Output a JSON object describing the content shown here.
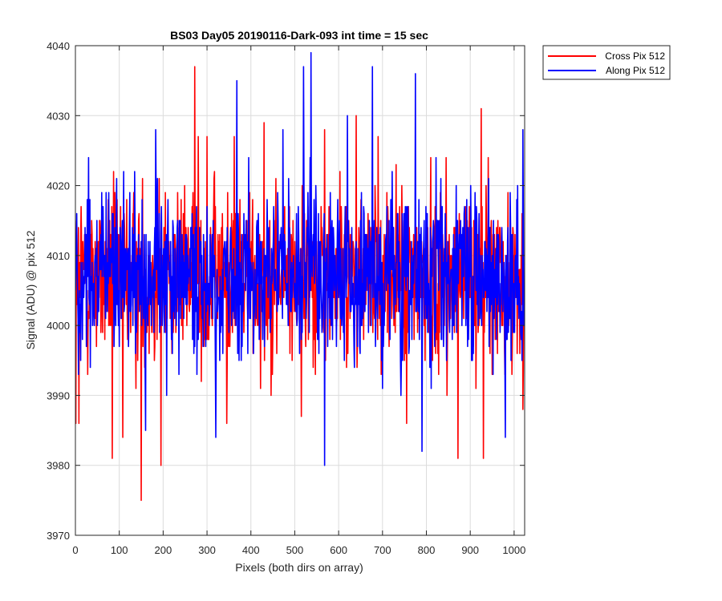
{
  "chart_data": {
    "type": "line",
    "title": "BS03 Day05 20190116-Dark-093 int time = 15 sec",
    "xlabel": "Pixels (both dirs on array)",
    "ylabel": "Signal (ADU) @ pix 512",
    "xlim": [
      0,
      1024
    ],
    "ylim": [
      3970,
      4040
    ],
    "xticks": [
      0,
      100,
      200,
      300,
      400,
      500,
      600,
      700,
      800,
      900,
      1000
    ],
    "yticks": [
      3970,
      3980,
      3990,
      4000,
      4010,
      4020,
      4030,
      4040
    ],
    "grid": true,
    "legend_position": "outside-top-right",
    "series": [
      {
        "name": "Cross Pix 512",
        "color": "#ff0000",
        "n_points": 1024,
        "mean": 4007,
        "noise_std": 6,
        "x": [
          1,
          8,
          84,
          108,
          150,
          195,
          272,
          280,
          300,
          345,
          362,
          430,
          457,
          515,
          568,
          640,
          690,
          755,
          845,
          872,
          925,
          930,
          1020
        ],
        "y": [
          3986,
          3986,
          3981,
          3984,
          3975,
          3980,
          4037,
          4027,
          4027,
          3986,
          4027,
          4029,
          4021,
          3987,
          4028,
          4030,
          4027,
          3986,
          4024,
          3981,
          4031,
          3981,
          3988
        ]
      },
      {
        "name": "Along Pix 512",
        "color": "#0000ff",
        "n_points": 1024,
        "mean": 4007,
        "noise_std": 6,
        "x": [
          30,
          160,
          183,
          320,
          368,
          473,
          520,
          537,
          568,
          620,
          677,
          775,
          790,
          980,
          1020
        ],
        "y": [
          4024,
          3985,
          4028,
          3984,
          4035,
          4028,
          4037,
          4039,
          3980,
          4030,
          4037,
          4036,
          3982,
          3984,
          4028
        ]
      }
    ]
  }
}
